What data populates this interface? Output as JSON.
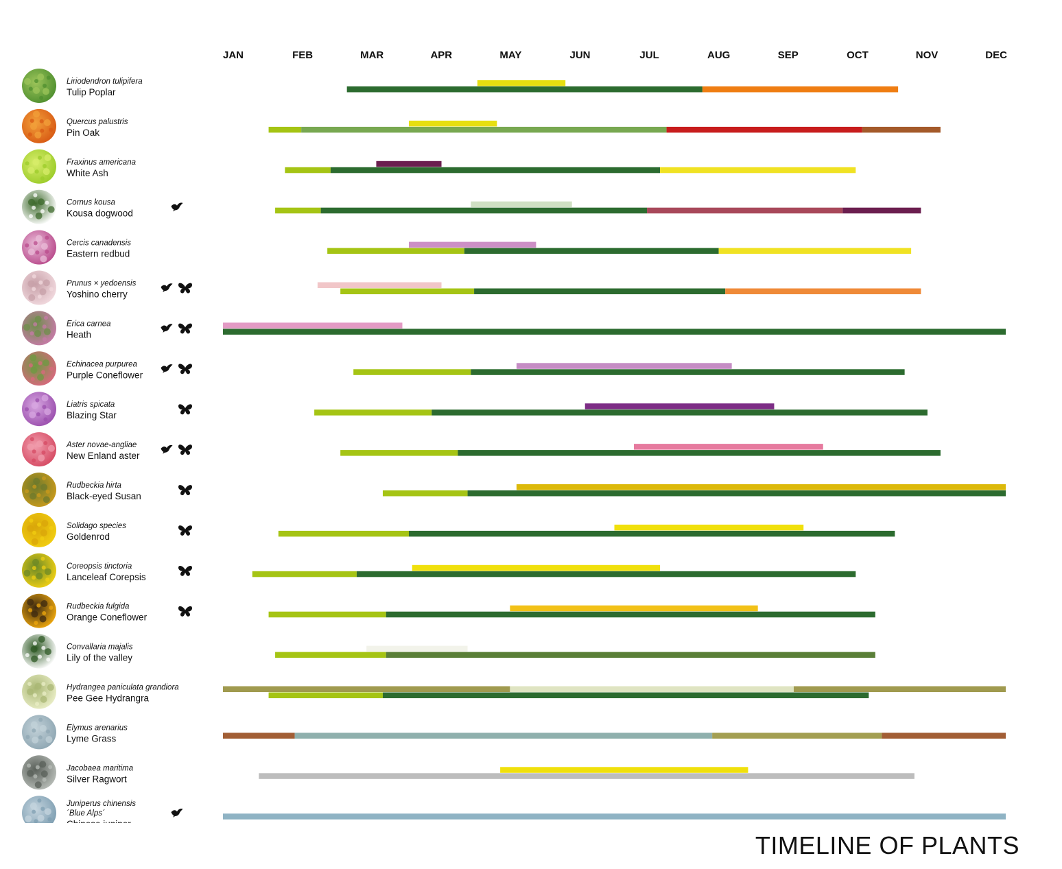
{
  "chart_data": {
    "type": "gantt",
    "title": "TIMELINE OF PLANTS",
    "months": [
      "JAN",
      "FEB",
      "MAR",
      "APR",
      "MAY",
      "JUN",
      "JUL",
      "AUG",
      "SEP",
      "OCT",
      "NOV",
      "DEC"
    ],
    "x_unit": "month (1 = JAN start, 13 = DEC end)",
    "xlim": [
      1,
      13
    ],
    "icon_legend": {
      "bird": "bird-icon",
      "butterfly": "butterfly-icon"
    },
    "rows": [
      {
        "scientific": [
          "Liriodendron tulipifera"
        ],
        "common": "Tulip Poplar",
        "photo_colors": [
          "#4f8f2f",
          "#9cc45a"
        ],
        "icons": [],
        "top": [
          {
            "start": 4.9,
            "end": 6.25,
            "color": "#e6df10"
          }
        ],
        "bottom": [
          {
            "start": 2.9,
            "end": 8.35,
            "color": "#2c6b2f"
          },
          {
            "start": 8.35,
            "end": 11.35,
            "color": "#ef7d12"
          }
        ]
      },
      {
        "scientific": [
          "Quercus palustris"
        ],
        "common": "Pin Oak",
        "photo_colors": [
          "#d85a14",
          "#f2a03a"
        ],
        "icons": [],
        "top": [
          {
            "start": 3.85,
            "end": 5.2,
            "color": "#e6df10"
          }
        ],
        "bottom": [
          {
            "start": 1.7,
            "end": 2.2,
            "color": "#a5c414"
          },
          {
            "start": 2.2,
            "end": 7.8,
            "color": "#78a851"
          },
          {
            "start": 7.8,
            "end": 10.8,
            "color": "#c81d1d"
          },
          {
            "start": 10.8,
            "end": 12.0,
            "color": "#a45a2a"
          }
        ]
      },
      {
        "scientific": [
          "Fraxinus americana"
        ],
        "common": "White Ash",
        "photo_colors": [
          "#9ccc2a",
          "#d7ec6a"
        ],
        "icons": [],
        "top": [
          {
            "start": 3.35,
            "end": 4.35,
            "color": "#6b1e4f"
          }
        ],
        "bottom": [
          {
            "start": 1.95,
            "end": 2.65,
            "color": "#a5c414"
          },
          {
            "start": 2.65,
            "end": 7.7,
            "color": "#2c6b2f"
          },
          {
            "start": 7.7,
            "end": 10.7,
            "color": "#f0e223"
          }
        ]
      },
      {
        "scientific": [
          "Cornus kousa"
        ],
        "common": "Kousa dogwood",
        "photo_colors": [
          "#ffffff",
          "#3e6a2c"
        ],
        "icons": [
          "bird"
        ],
        "top": [
          {
            "start": 4.8,
            "end": 6.35,
            "color": "#cfe0c3"
          }
        ],
        "bottom": [
          {
            "start": 1.8,
            "end": 2.5,
            "color": "#a5c414"
          },
          {
            "start": 2.5,
            "end": 7.5,
            "color": "#2c6b2f"
          },
          {
            "start": 7.5,
            "end": 10.5,
            "color": "#a8485a"
          },
          {
            "start": 10.5,
            "end": 11.7,
            "color": "#6b1e4f"
          }
        ]
      },
      {
        "scientific": [
          "Cercis canadensis"
        ],
        "common": "Eastern redbud",
        "photo_colors": [
          "#b94b8c",
          "#e9bcd8"
        ],
        "icons": [],
        "top": [
          {
            "start": 3.85,
            "end": 5.8,
            "color": "#cc8fc5"
          }
        ],
        "bottom": [
          {
            "start": 2.6,
            "end": 4.7,
            "color": "#a5c414"
          },
          {
            "start": 4.7,
            "end": 8.6,
            "color": "#2c6b2f"
          },
          {
            "start": 8.6,
            "end": 11.55,
            "color": "#f0e223"
          }
        ]
      },
      {
        "scientific": [
          "Prunus × yedoensis"
        ],
        "common": "Yoshino cherry",
        "photo_colors": [
          "#f1d9de",
          "#c7a0a8"
        ],
        "icons": [
          "bird",
          "butterfly"
        ],
        "top": [
          {
            "start": 2.45,
            "end": 4.35,
            "color": "#f1c6c8"
          }
        ],
        "bottom": [
          {
            "start": 2.8,
            "end": 4.85,
            "color": "#a5c414"
          },
          {
            "start": 4.85,
            "end": 8.7,
            "color": "#2c6b2f"
          },
          {
            "start": 8.7,
            "end": 11.7,
            "color": "#ef8a38"
          }
        ]
      },
      {
        "scientific": [
          "Erica carnea"
        ],
        "common": "Heath",
        "photo_colors": [
          "#c77aa8",
          "#6e8f4a"
        ],
        "icons": [
          "bird",
          "butterfly"
        ],
        "top": [
          {
            "start": 1.0,
            "end": 3.75,
            "color": "#e39ac4"
          }
        ],
        "bottom": [
          {
            "start": 1.0,
            "end": 13.0,
            "color": "#2c6b2f"
          }
        ]
      },
      {
        "scientific": [
          "Echinacea purpurea"
        ],
        "common": "Purple Coneflower",
        "photo_colors": [
          "#d9687e",
          "#6e9a42"
        ],
        "icons": [
          "bird",
          "butterfly"
        ],
        "top": [
          {
            "start": 5.5,
            "end": 8.8,
            "color": "#c58cc4"
          }
        ],
        "bottom": [
          {
            "start": 3.0,
            "end": 4.8,
            "color": "#a5c414"
          },
          {
            "start": 4.8,
            "end": 11.45,
            "color": "#2c6b2f"
          }
        ]
      },
      {
        "scientific": [
          "Liatris spicata"
        ],
        "common": "Blazing Star",
        "photo_colors": [
          "#9b4fae",
          "#d7a6e0"
        ],
        "icons": [
          "butterfly"
        ],
        "top": [
          {
            "start": 6.55,
            "end": 9.45,
            "color": "#7d2d86"
          }
        ],
        "bottom": [
          {
            "start": 2.4,
            "end": 4.2,
            "color": "#a5c414"
          },
          {
            "start": 4.2,
            "end": 11.8,
            "color": "#2c6b2f"
          }
        ]
      },
      {
        "scientific": [
          "Aster novae-angliae"
        ],
        "common": "New Enland aster",
        "photo_colors": [
          "#d64a63",
          "#f09cac"
        ],
        "icons": [
          "bird",
          "butterfly"
        ],
        "top": [
          {
            "start": 7.3,
            "end": 10.2,
            "color": "#e67a9e"
          }
        ],
        "bottom": [
          {
            "start": 2.8,
            "end": 4.6,
            "color": "#a5c414"
          },
          {
            "start": 4.6,
            "end": 12.0,
            "color": "#2c6b2f"
          }
        ]
      },
      {
        "scientific": [
          "Rudbeckia hirta"
        ],
        "common": "Black-eyed Susan",
        "photo_colors": [
          "#c99a1c",
          "#6d7a2c"
        ],
        "icons": [
          "butterfly"
        ],
        "top": [
          {
            "start": 5.5,
            "end": 13.0,
            "color": "#dcb90a"
          }
        ],
        "bottom": [
          {
            "start": 3.45,
            "end": 4.75,
            "color": "#a5c414"
          },
          {
            "start": 4.75,
            "end": 13.0,
            "color": "#2c6b2f"
          }
        ]
      },
      {
        "scientific": [
          "Solidago species"
        ],
        "common": "Goldenrod",
        "photo_colors": [
          "#f1cd10",
          "#d9a60a"
        ],
        "icons": [
          "butterfly"
        ],
        "top": [
          {
            "start": 7.0,
            "end": 9.9,
            "color": "#f0e00c"
          }
        ],
        "bottom": [
          {
            "start": 1.85,
            "end": 3.85,
            "color": "#a5c414"
          },
          {
            "start": 3.85,
            "end": 11.3,
            "color": "#2c6b2f"
          }
        ]
      },
      {
        "scientific": [
          "Coreopsis tinctoria"
        ],
        "common": "Lanceleaf Corepsis",
        "photo_colors": [
          "#efcf14",
          "#6d8a26"
        ],
        "icons": [
          "butterfly"
        ],
        "top": [
          {
            "start": 3.9,
            "end": 7.7,
            "color": "#f0e00c"
          }
        ],
        "bottom": [
          {
            "start": 1.45,
            "end": 3.05,
            "color": "#a5c414"
          },
          {
            "start": 3.05,
            "end": 10.7,
            "color": "#2c6b2f"
          }
        ]
      },
      {
        "scientific": [
          "Rudbeckia fulgida"
        ],
        "common": "Orange Coneflower",
        "photo_colors": [
          "#efa80e",
          "#3d2a10"
        ],
        "icons": [
          "butterfly"
        ],
        "top": [
          {
            "start": 5.4,
            "end": 9.2,
            "color": "#f2c117"
          }
        ],
        "bottom": [
          {
            "start": 1.7,
            "end": 3.5,
            "color": "#a5c414"
          },
          {
            "start": 3.5,
            "end": 11.0,
            "color": "#2c6b2f"
          }
        ]
      },
      {
        "scientific": [
          "Convallaria majalis"
        ],
        "common": "Lily of the valley",
        "photo_colors": [
          "#ffffff",
          "#2f5a25"
        ],
        "icons": [],
        "top": [
          {
            "start": 3.2,
            "end": 4.75,
            "color": "#f2f3ea"
          }
        ],
        "bottom": [
          {
            "start": 1.8,
            "end": 3.5,
            "color": "#a5c414"
          },
          {
            "start": 3.5,
            "end": 11.0,
            "color": "#5a7f38"
          }
        ]
      },
      {
        "scientific": [
          "Hydrangea paniculata grandiora"
        ],
        "common": "Pee Gee Hydrangra",
        "photo_colors": [
          "#e9edc6",
          "#a9b774"
        ],
        "icons": [],
        "top": [
          {
            "start": 1.0,
            "end": 5.4,
            "color": "#a09a4f"
          },
          {
            "start": 5.4,
            "end": 9.75,
            "color": "#dfe4c2"
          },
          {
            "start": 9.75,
            "end": 13.0,
            "color": "#a09a4f"
          }
        ],
        "bottom": [
          {
            "start": 1.7,
            "end": 3.45,
            "color": "#a5c414"
          },
          {
            "start": 3.45,
            "end": 10.9,
            "color": "#2c6b2f"
          }
        ]
      },
      {
        "scientific": [
          "Elymus arenarius"
        ],
        "common": "Lyme Grass",
        "photo_colors": [
          "#8fa7b3",
          "#c2d1d8"
        ],
        "icons": [],
        "top": [],
        "bottom": [
          {
            "start": 1.0,
            "end": 2.1,
            "color": "#a25e35"
          },
          {
            "start": 2.1,
            "end": 8.5,
            "color": "#8fb0ad"
          },
          {
            "start": 8.5,
            "end": 11.1,
            "color": "#a39f52"
          },
          {
            "start": 11.1,
            "end": 13.0,
            "color": "#a25e35"
          }
        ]
      },
      {
        "scientific": [
          "Jacobaea maritima"
        ],
        "common": "Silver Ragwort",
        "photo_colors": [
          "#b7bcb7",
          "#5a605a"
        ],
        "icons": [],
        "top": [
          {
            "start": 5.25,
            "end": 9.05,
            "color": "#f0e00c"
          }
        ],
        "bottom": [
          {
            "start": 1.55,
            "end": 11.6,
            "color": "#bdbdbd"
          }
        ]
      },
      {
        "scientific": [
          "Juniperus chinensis",
          "´Blue Alps´"
        ],
        "common": "Chinese juniper",
        "photo_colors": [
          "#7f9fb2",
          "#c4d4de"
        ],
        "icons": [
          "bird"
        ],
        "top": [],
        "bottom": [
          {
            "start": 1.0,
            "end": 13.0,
            "color": "#8fb3c4"
          }
        ]
      }
    ]
  }
}
